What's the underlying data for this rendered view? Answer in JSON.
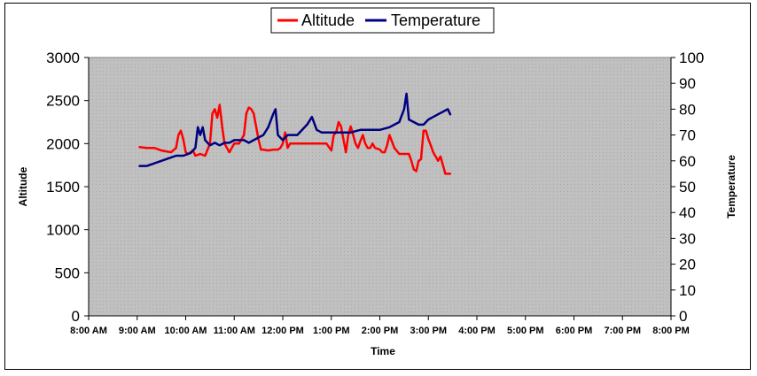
{
  "chart_data": {
    "type": "line",
    "title": "",
    "xlabel": "Time",
    "ylabel_left": "Altitude",
    "ylabel_right": "Temperature",
    "x_ticks": [
      "8:00 AM",
      "9:00 AM",
      "10:00 AM",
      "11:00 AM",
      "12:00 PM",
      "1:00 PM",
      "2:00 PM",
      "3:00 PM",
      "4:00 PM",
      "5:00 PM",
      "6:00 PM",
      "7:00 PM",
      "8:00 PM"
    ],
    "xlim": [
      8,
      20
    ],
    "ylim_left": [
      0,
      3000
    ],
    "ylim_right": [
      0,
      100
    ],
    "y_ticks_left": [
      "0",
      "500",
      "1000",
      "1500",
      "2000",
      "2500",
      "3000"
    ],
    "y_ticks_right": [
      "0",
      "10",
      "20",
      "30",
      "40",
      "50",
      "60",
      "70",
      "80",
      "90",
      "100"
    ],
    "grid": false,
    "legend_position": "top",
    "series": [
      {
        "name": "Altitude",
        "color": "#ff0000",
        "axis": "left",
        "x": [
          9.05,
          9.2,
          9.35,
          9.5,
          9.6,
          9.7,
          9.8,
          9.85,
          9.9,
          9.95,
          10.0,
          10.05,
          10.1,
          10.15,
          10.2,
          10.3,
          10.4,
          10.5,
          10.55,
          10.6,
          10.65,
          10.7,
          10.75,
          10.8,
          10.85,
          10.9,
          10.95,
          11.0,
          11.1,
          11.2,
          11.25,
          11.3,
          11.35,
          11.4,
          11.45,
          11.5,
          11.55,
          11.6,
          11.7,
          11.8,
          11.9,
          11.95,
          12.0,
          12.05,
          12.1,
          12.15,
          12.3,
          12.5,
          12.7,
          12.9,
          13.0,
          13.05,
          13.1,
          13.15,
          13.2,
          13.3,
          13.35,
          13.4,
          13.45,
          13.5,
          13.55,
          13.6,
          13.65,
          13.7,
          13.75,
          13.8,
          13.85,
          13.9,
          14.0,
          14.05,
          14.1,
          14.15,
          14.2,
          14.3,
          14.4,
          14.5,
          14.55,
          14.6,
          14.65,
          14.7,
          14.75,
          14.8,
          14.85,
          14.9,
          14.95,
          15.0,
          15.05,
          15.1,
          15.15,
          15.2,
          15.25,
          15.3,
          15.35,
          15.4,
          15.45
        ],
        "y": [
          1960,
          1950,
          1950,
          1920,
          1910,
          1900,
          1950,
          2100,
          2150,
          2050,
          1900,
          1880,
          1900,
          1920,
          1860,
          1880,
          1860,
          2000,
          2350,
          2400,
          2300,
          2450,
          2200,
          2000,
          1950,
          1900,
          1950,
          2000,
          2000,
          2100,
          2350,
          2420,
          2400,
          2350,
          2200,
          2050,
          1930,
          1930,
          1920,
          1930,
          1930,
          1950,
          2000,
          2130,
          1950,
          2000,
          2000,
          2000,
          2000,
          2000,
          1920,
          2100,
          2130,
          2250,
          2200,
          1900,
          2100,
          2200,
          2100,
          2000,
          1950,
          2030,
          2100,
          2000,
          1950,
          1950,
          2000,
          1950,
          1930,
          1900,
          1900,
          1980,
          2100,
          1950,
          1880,
          1880,
          1880,
          1880,
          1800,
          1700,
          1680,
          1800,
          1820,
          2150,
          2150,
          2050,
          1980,
          1900,
          1850,
          1800,
          1850,
          1750,
          1650,
          1650,
          1650
        ]
      },
      {
        "name": "Temperature",
        "color": "#000080",
        "axis": "right",
        "x": [
          9.05,
          9.2,
          9.35,
          9.5,
          9.65,
          9.8,
          9.95,
          10.1,
          10.2,
          10.25,
          10.3,
          10.35,
          10.4,
          10.5,
          10.6,
          10.7,
          10.8,
          10.9,
          11.0,
          11.1,
          11.2,
          11.3,
          11.4,
          11.5,
          11.6,
          11.7,
          11.8,
          11.85,
          11.9,
          12.0,
          12.1,
          12.3,
          12.5,
          12.6,
          12.7,
          12.8,
          12.9,
          13.0,
          13.2,
          13.4,
          13.6,
          13.8,
          14.0,
          14.2,
          14.3,
          14.4,
          14.5,
          14.55,
          14.6,
          14.7,
          14.8,
          14.9,
          15.0,
          15.1,
          15.2,
          15.3,
          15.4,
          15.45
        ],
        "y": [
          58,
          58,
          59,
          60,
          61,
          62,
          62,
          63,
          65,
          73,
          70,
          73,
          68,
          66,
          67,
          66,
          67,
          67,
          68,
          68,
          68,
          67,
          68,
          69,
          70,
          73,
          78,
          80,
          70,
          68,
          70,
          70,
          74,
          77,
          72,
          71,
          71,
          71,
          71,
          71,
          72,
          72,
          72,
          73,
          74,
          75,
          80,
          86,
          76,
          75,
          74,
          74,
          76,
          77,
          78,
          79,
          80,
          78
        ]
      }
    ]
  }
}
